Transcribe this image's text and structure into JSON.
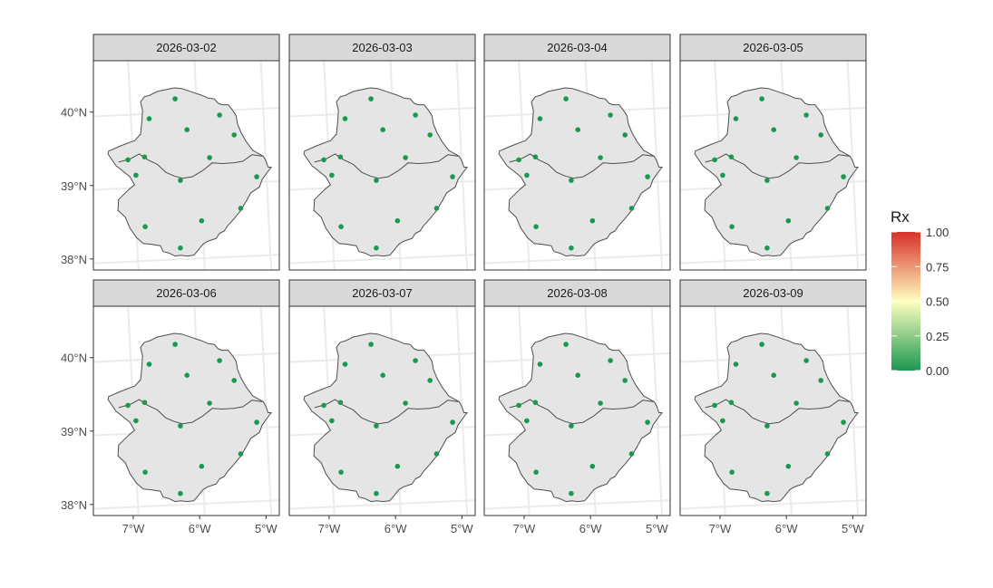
{
  "chart_data": {
    "type": "scatter",
    "facets": [
      {
        "label": "2026-03-02"
      },
      {
        "label": "2026-03-03"
      },
      {
        "label": "2026-03-04"
      },
      {
        "label": "2026-03-05"
      },
      {
        "label": "2026-03-06"
      },
      {
        "label": "2026-03-07"
      },
      {
        "label": "2026-03-08"
      },
      {
        "label": "2026-03-09"
      }
    ],
    "x_ticks": [
      "7°W",
      "6°W",
      "5°W"
    ],
    "x_tick_values": [
      -7,
      -6,
      -5
    ],
    "y_ticks": [
      "38°N",
      "39°N",
      "40°N"
    ],
    "y_tick_values": [
      38,
      39,
      40
    ],
    "xlim": [
      -7.6,
      -4.8
    ],
    "ylim": [
      37.85,
      40.7
    ],
    "stations": [
      {
        "lon": -6.37,
        "lat": 40.18,
        "value": 0.0
      },
      {
        "lon": -5.7,
        "lat": 39.96,
        "value": 0.0
      },
      {
        "lon": -6.76,
        "lat": 39.91,
        "value": 0.0
      },
      {
        "lon": -6.19,
        "lat": 39.76,
        "value": 0.0
      },
      {
        "lon": -5.48,
        "lat": 39.69,
        "value": 0.0
      },
      {
        "lon": -7.08,
        "lat": 39.35,
        "value": 0.0
      },
      {
        "lon": -6.83,
        "lat": 39.39,
        "value": 0.0
      },
      {
        "lon": -5.85,
        "lat": 39.38,
        "value": 0.0
      },
      {
        "lon": -6.96,
        "lat": 39.14,
        "value": 0.0
      },
      {
        "lon": -5.14,
        "lat": 39.12,
        "value": 0.0
      },
      {
        "lon": -6.29,
        "lat": 39.07,
        "value": 0.0
      },
      {
        "lon": -5.38,
        "lat": 38.69,
        "value": 0.0
      },
      {
        "lon": -5.97,
        "lat": 38.52,
        "value": 0.0
      },
      {
        "lon": -6.82,
        "lat": 38.44,
        "value": 0.0
      },
      {
        "lon": -6.29,
        "lat": 38.15,
        "value": 0.0
      }
    ],
    "legend": {
      "title": "Rx",
      "position": "right",
      "ticks": [
        "1.00",
        "0.75",
        "0.50",
        "0.25",
        "0.00"
      ],
      "tick_values": [
        1.0,
        0.75,
        0.5,
        0.25,
        0.0
      ],
      "range": [
        0,
        1
      ],
      "color_low": "#1a9850",
      "color_mid": "#ffffbf",
      "color_high": "#d73027"
    },
    "colors": {
      "region_fill": "#e5e5e5",
      "region_stroke": "#4d4d4d",
      "grid": "#ebebeb",
      "strip_fill": "#d9d9d9",
      "panel_border": "#333333",
      "axis_text": "#4d4d4d"
    },
    "region_outline": [
      [
        -6.98,
        39.61
      ],
      [
        -6.89,
        39.7
      ],
      [
        -6.87,
        39.87
      ],
      [
        -6.86,
        40.02
      ],
      [
        -6.89,
        40.14
      ],
      [
        -6.83,
        40.21
      ],
      [
        -6.75,
        40.23
      ],
      [
        -6.64,
        40.28
      ],
      [
        -6.49,
        40.31
      ],
      [
        -6.38,
        40.33
      ],
      [
        -6.27,
        40.32
      ],
      [
        -6.17,
        40.29
      ],
      [
        -6.07,
        40.26
      ],
      [
        -5.97,
        40.23
      ],
      [
        -5.87,
        40.19
      ],
      [
        -5.78,
        40.18
      ],
      [
        -5.72,
        40.12
      ],
      [
        -5.66,
        40.1
      ],
      [
        -5.57,
        40.1
      ],
      [
        -5.5,
        40.02
      ],
      [
        -5.45,
        39.95
      ],
      [
        -5.43,
        39.84
      ],
      [
        -5.38,
        39.73
      ],
      [
        -5.3,
        39.6
      ],
      [
        -5.2,
        39.48
      ],
      [
        -5.04,
        39.4
      ],
      [
        -5.0,
        39.33
      ],
      [
        -4.97,
        39.25
      ],
      [
        -4.92,
        39.25
      ],
      [
        -4.99,
        39.17
      ],
      [
        -5.06,
        39.08
      ],
      [
        -5.1,
        38.98
      ],
      [
        -5.23,
        38.9
      ],
      [
        -5.29,
        38.8
      ],
      [
        -5.38,
        38.66
      ],
      [
        -5.48,
        38.55
      ],
      [
        -5.58,
        38.45
      ],
      [
        -5.63,
        38.38
      ],
      [
        -5.7,
        38.35
      ],
      [
        -5.75,
        38.28
      ],
      [
        -5.88,
        38.24
      ],
      [
        -5.95,
        38.2
      ],
      [
        -6.03,
        38.11
      ],
      [
        -6.09,
        38.05
      ],
      [
        -6.19,
        38.04
      ],
      [
        -6.28,
        38.05
      ],
      [
        -6.37,
        38.04
      ],
      [
        -6.46,
        38.08
      ],
      [
        -6.55,
        38.1
      ],
      [
        -6.59,
        38.18
      ],
      [
        -6.73,
        38.2
      ],
      [
        -6.85,
        38.21
      ],
      [
        -6.95,
        38.29
      ],
      [
        -7.05,
        38.42
      ],
      [
        -7.12,
        38.57
      ],
      [
        -7.23,
        38.66
      ],
      [
        -7.22,
        38.81
      ],
      [
        -7.06,
        38.95
      ],
      [
        -6.98,
        39.01
      ],
      [
        -7.05,
        39.12
      ],
      [
        -7.16,
        39.2
      ],
      [
        -7.26,
        39.27
      ],
      [
        -7.32,
        39.35
      ],
      [
        -7.38,
        39.43
      ],
      [
        -7.37,
        39.47
      ],
      [
        -7.19,
        39.54
      ],
      [
        -7.02,
        39.6
      ]
    ],
    "province_border": [
      [
        -7.22,
        39.32
      ],
      [
        -7.09,
        39.35
      ],
      [
        -7.03,
        39.37
      ],
      [
        -6.91,
        39.43
      ],
      [
        -6.78,
        39.35
      ],
      [
        -6.64,
        39.29
      ],
      [
        -6.51,
        39.18
      ],
      [
        -6.38,
        39.13
      ],
      [
        -6.26,
        39.1
      ],
      [
        -6.11,
        39.12
      ],
      [
        -5.96,
        39.2
      ],
      [
        -5.81,
        39.31
      ],
      [
        -5.66,
        39.3
      ],
      [
        -5.49,
        39.31
      ],
      [
        -5.35,
        39.33
      ],
      [
        -5.21,
        39.42
      ],
      [
        -5.05,
        39.4
      ]
    ]
  }
}
